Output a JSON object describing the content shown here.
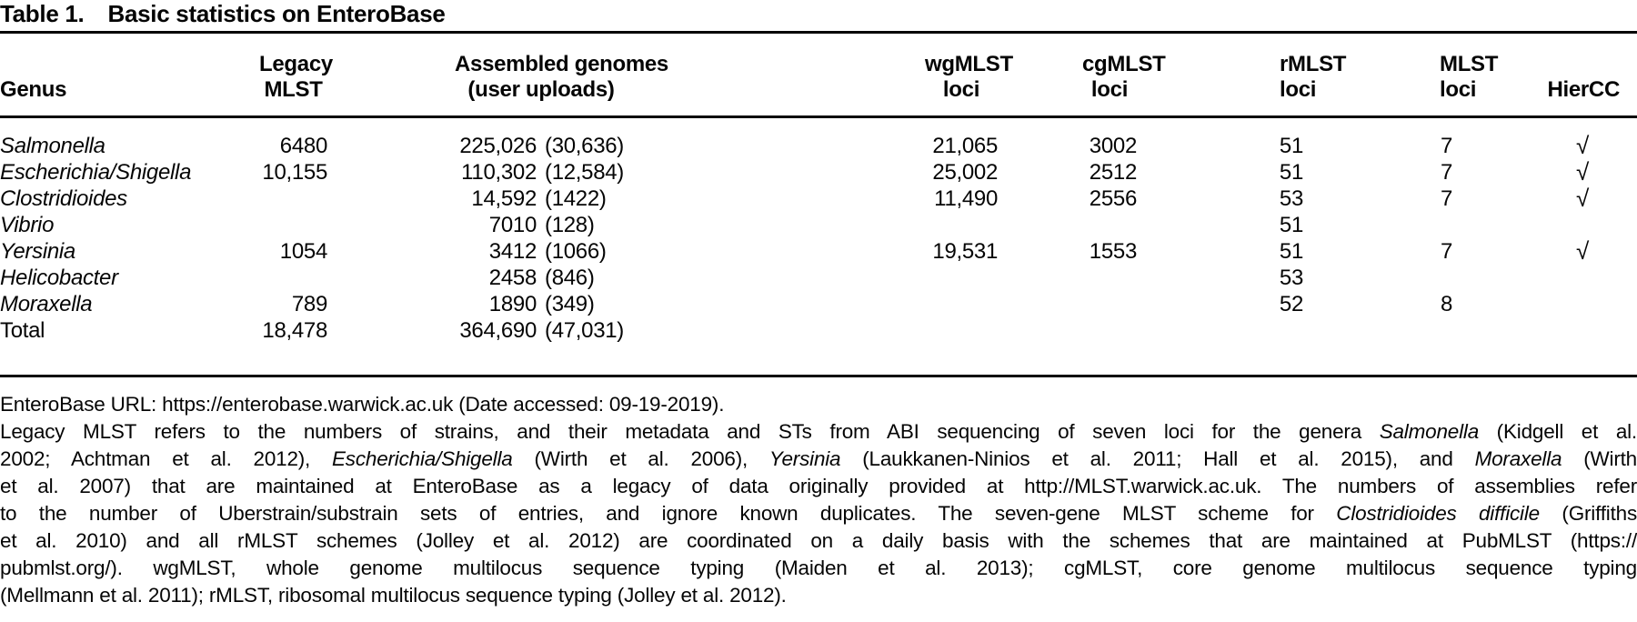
{
  "title": {
    "label": "Table 1.",
    "text": "Basic statistics on EnteroBase"
  },
  "table": {
    "checkmark_glyph": "√",
    "columns": [
      {
        "line1": "Genus"
      },
      {
        "line1": "Legacy",
        "line2": "MLST"
      },
      {
        "line1": "Assembled genomes",
        "line2": "(user uploads)"
      },
      {
        "line1": "wgMLST",
        "line2": "loci"
      },
      {
        "line1": "cgMLST",
        "line2": "loci"
      },
      {
        "line1": "rMLST",
        "line2": "loci"
      },
      {
        "line1": "MLST",
        "line2": "loci"
      },
      {
        "line1": "HierCC"
      }
    ],
    "rows": [
      {
        "genus": "Salmonella",
        "italic": true,
        "legacy_mlst": "6480",
        "assembled": "225,026",
        "uploads": "(30,636)",
        "wgmlst": "21,065",
        "cgmlst": "3002",
        "rmlst": "51",
        "mlst": "7",
        "hiercc": true
      },
      {
        "genus": "Escherichia/Shigella",
        "italic": true,
        "legacy_mlst": "10,155",
        "assembled": "110,302",
        "uploads": "(12,584)",
        "wgmlst": "25,002",
        "cgmlst": "2512",
        "rmlst": "51",
        "mlst": "7",
        "hiercc": true
      },
      {
        "genus": "Clostridioides",
        "italic": true,
        "legacy_mlst": "",
        "assembled": "14,592",
        "uploads": "(1422)",
        "wgmlst": "11,490",
        "cgmlst": "2556",
        "rmlst": "53",
        "mlst": "7",
        "hiercc": true
      },
      {
        "genus": "Vibrio",
        "italic": true,
        "legacy_mlst": "",
        "assembled": "7010",
        "uploads": "(128)",
        "wgmlst": "",
        "cgmlst": "",
        "rmlst": "51",
        "mlst": "",
        "hiercc": false
      },
      {
        "genus": "Yersinia",
        "italic": true,
        "legacy_mlst": "1054",
        "assembled": "3412",
        "uploads": "(1066)",
        "wgmlst": "19,531",
        "cgmlst": "1553",
        "rmlst": "51",
        "mlst": "7",
        "hiercc": true
      },
      {
        "genus": "Helicobacter",
        "italic": true,
        "legacy_mlst": "",
        "assembled": "2458",
        "uploads": "(846)",
        "wgmlst": "",
        "cgmlst": "",
        "rmlst": "53",
        "mlst": "",
        "hiercc": false
      },
      {
        "genus": "Moraxella",
        "italic": true,
        "legacy_mlst": "789",
        "assembled": "1890",
        "uploads": "(349)",
        "wgmlst": "",
        "cgmlst": "",
        "rmlst": "52",
        "mlst": "8",
        "hiercc": false
      },
      {
        "genus": "Total",
        "italic": false,
        "legacy_mlst": "18,478",
        "assembled": "364,690",
        "uploads": "(47,031)",
        "wgmlst": "",
        "cgmlst": "",
        "rmlst": "",
        "mlst": "",
        "hiercc": false
      }
    ]
  },
  "footnotes": [
    {
      "justify": false,
      "lines": [
        [
          {
            "t": "EnteroBase URL: https://enterobase.warwick.ac.uk (Date accessed: 09-19-2019)."
          }
        ]
      ]
    },
    {
      "justify": true,
      "lines": [
        [
          {
            "t": "Legacy MLST refers to the numbers of strains, and their metadata and STs from ABI sequencing of seven loci for the genera "
          },
          {
            "t": "Salmonella",
            "i": true
          },
          {
            "t": " (Kidgell et al."
          }
        ],
        [
          {
            "t": "2002; Achtman et al. 2012), "
          },
          {
            "t": "Escherichia/Shigella",
            "i": true
          },
          {
            "t": " (Wirth et al. 2006), "
          },
          {
            "t": "Yersinia",
            "i": true
          },
          {
            "t": " (Laukkanen-Ninios et al. 2011; Hall et al. 2015), and "
          },
          {
            "t": "Moraxella",
            "i": true
          },
          {
            "t": " (Wirth"
          }
        ],
        [
          {
            "t": "et al. 2007) that are maintained at EnteroBase as a legacy of data originally provided at http://MLST.warwick.ac.uk. The numbers of assemblies refer"
          }
        ],
        [
          {
            "t": "to the number of Uberstrain/substrain sets of entries, and ignore known duplicates. The seven-gene MLST scheme for "
          },
          {
            "t": "Clostridioides difficile",
            "i": true
          },
          {
            "t": " (Griffiths"
          }
        ],
        [
          {
            "t": "et al. 2010) and all rMLST schemes (Jolley et al. 2012) are coordinated on a daily basis with the schemes that are maintained at PubMLST (https://"
          }
        ],
        [
          {
            "t": "pubmlst.org/). wgMLST, whole genome multilocus sequence typing (Maiden et al. 2013); cgMLST, core genome multilocus sequence typing"
          }
        ],
        [
          {
            "t": "(Mellmann et al. 2011); rMLST, ribosomal multilocus sequence typing (Jolley et al. 2012)."
          }
        ]
      ]
    }
  ]
}
